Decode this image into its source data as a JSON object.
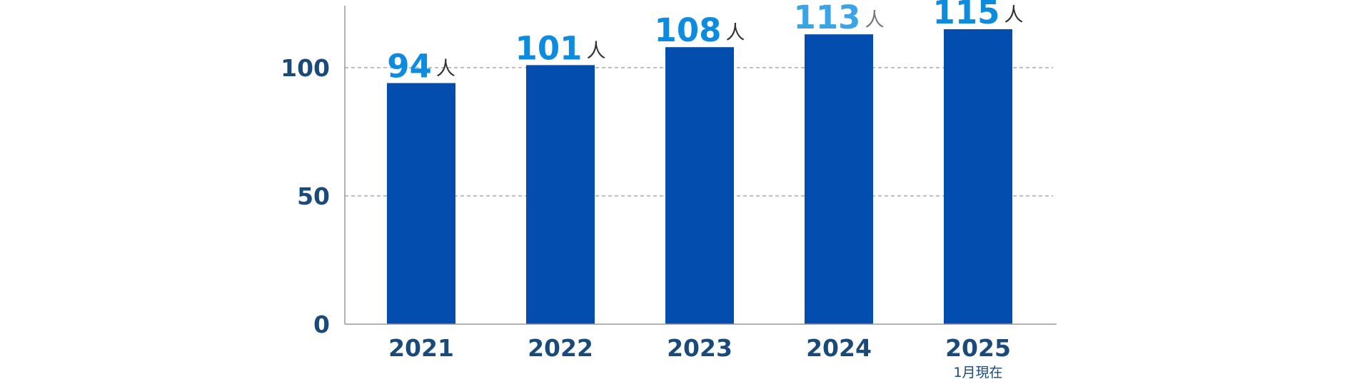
{
  "chart_data": {
    "type": "bar",
    "title": "",
    "xlabel": "",
    "ylabel": "",
    "categories": [
      "2021",
      "2022",
      "2023",
      "2024",
      "2025"
    ],
    "category_notes": [
      "",
      "",
      "",
      "",
      "1月現在"
    ],
    "values": [
      94,
      101,
      108,
      113,
      115
    ],
    "value_unit": "人",
    "ylim": [
      0,
      120
    ],
    "yticks": [
      0,
      50,
      100
    ],
    "grid": "dashed horizontal at 50 and 100",
    "legend": "none"
  },
  "colors": {
    "bar": "#034dae",
    "value_label": "#0d8cdf",
    "value_label_highlight": "#3aa4e6",
    "unit": "#333333",
    "unit_highlight": "#777777",
    "axis_text": "#1a4a7a",
    "axis_line": "#999999",
    "grid": "#999999"
  }
}
